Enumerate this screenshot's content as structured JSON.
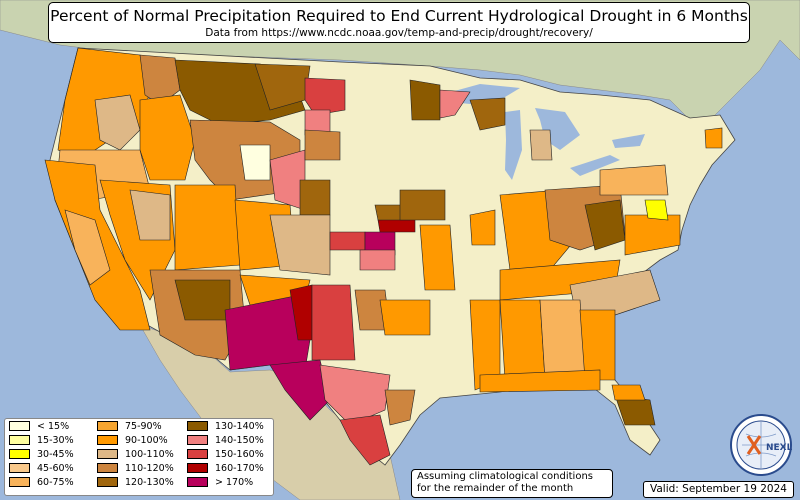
{
  "header": {
    "title": "Percent of Normal Precipitation Required to End Current Hydrological Drought in 6 Months",
    "subtitle": "Data from https://www.ncdc.noaa.gov/temp-and-precip/drought/recovery/"
  },
  "legend": {
    "items": [
      {
        "label": "< 15%",
        "color": "#ffffe0"
      },
      {
        "label": "15-30%",
        "color": "#ffffa0"
      },
      {
        "label": "30-45%",
        "color": "#ffff00"
      },
      {
        "label": "45-60%",
        "color": "#f9c98b"
      },
      {
        "label": "60-75%",
        "color": "#f8b35b"
      },
      {
        "label": "75-90%",
        "color": "#f6a530"
      },
      {
        "label": "90-100%",
        "color": "#ff9900"
      },
      {
        "label": "100-110%",
        "color": "#deb887"
      },
      {
        "label": "110-120%",
        "color": "#cd853f"
      },
      {
        "label": "120-130%",
        "color": "#a0660d"
      },
      {
        "label": "130-140%",
        "color": "#8b5a00"
      },
      {
        "label": "140-150%",
        "color": "#f08080"
      },
      {
        "label": "150-160%",
        "color": "#d94040"
      },
      {
        "label": "160-170%",
        "color": "#b00000"
      },
      {
        "label": "> 170%",
        "color": "#b8005c"
      }
    ]
  },
  "footer": {
    "note_line1": "Assuming climatological conditions",
    "note_line2": "for the remainder of the month",
    "valid": "Valid: September 19 2024",
    "logo_text": "NEXLAB"
  }
}
